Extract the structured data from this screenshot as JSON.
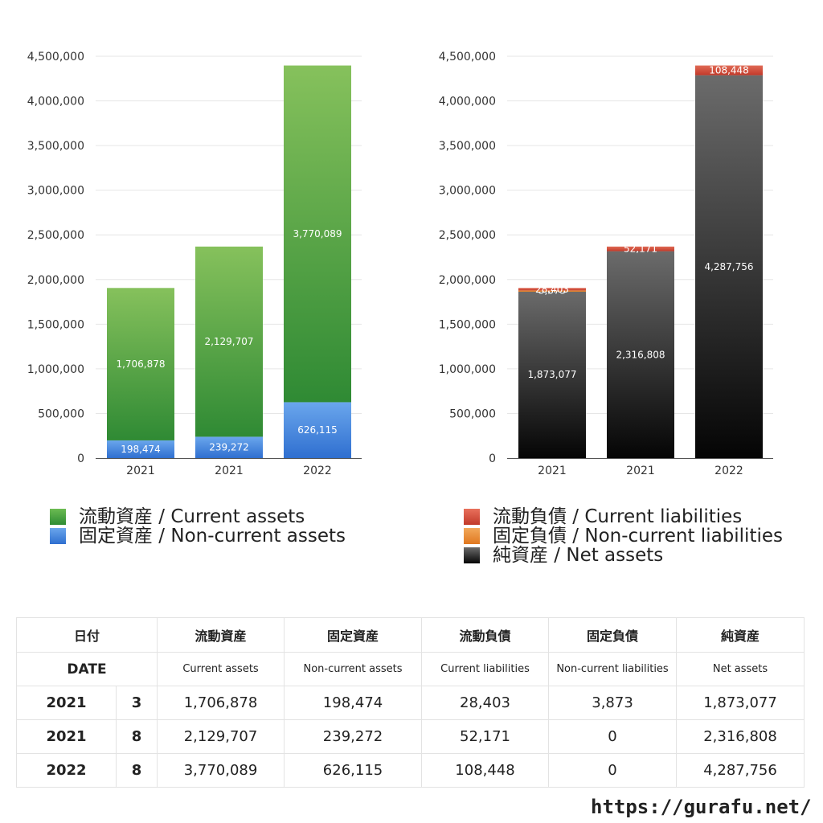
{
  "chart_data": [
    {
      "type": "bar",
      "stacked": true,
      "categories": [
        "2021",
        "2021",
        "2022"
      ],
      "ylim": [
        0,
        4500000
      ],
      "yticks": [
        "0",
        "500,000",
        "1,000,000",
        "1,500,000",
        "2,000,000",
        "2,500,000",
        "3,000,000",
        "3,500,000",
        "4,000,000",
        "4,500,000"
      ],
      "grid": true,
      "legend_position": "bottom",
      "series": [
        {
          "name": "固定資産 / Non-current assets",
          "values": [
            198474,
            239272,
            626115
          ],
          "labels": [
            "198,474",
            "239,272",
            "626,115"
          ],
          "color_top": "#6aa6ec",
          "color_bottom": "#2f6fd0"
        },
        {
          "name": "流動資産 / Current assets",
          "values": [
            1706878,
            2129707,
            3770089
          ],
          "labels": [
            "1,706,878",
            "2,129,707",
            "3,770,089"
          ],
          "color_top": "#86c15c",
          "color_bottom": "#2f8a34"
        }
      ]
    },
    {
      "type": "bar",
      "stacked": true,
      "categories": [
        "2021",
        "2021",
        "2022"
      ],
      "ylim": [
        0,
        4500000
      ],
      "yticks": [
        "0",
        "500,000",
        "1,000,000",
        "1,500,000",
        "2,000,000",
        "2,500,000",
        "3,000,000",
        "3,500,000",
        "4,000,000",
        "4,500,000"
      ],
      "grid": true,
      "legend_position": "bottom",
      "series": [
        {
          "name": "純資産 / Net assets",
          "values": [
            1873077,
            2316808,
            4287756
          ],
          "labels": [
            "1,873,077",
            "2,316,808",
            "4,287,756"
          ],
          "color_top": "#6b6b6b",
          "color_bottom": "#050505"
        },
        {
          "name": "固定負債 / Non-current liabilities",
          "values": [
            3873,
            0,
            0
          ],
          "labels": [
            "3,873",
            "",
            ""
          ],
          "color_top": "#f0a050",
          "color_bottom": "#e07820"
        },
        {
          "name": "流動負債 / Current liabilities",
          "values": [
            28403,
            52171,
            108448
          ],
          "labels": [
            "28,403",
            "52,171",
            "108,448"
          ],
          "color_top": "#e06a55",
          "color_bottom": "#c23a2a"
        }
      ]
    }
  ],
  "legend_left": [
    {
      "label": "流動資産 / Current assets",
      "color": "#4aa53c"
    },
    {
      "label": "固定資産 / Non-current assets",
      "color": "#3f86e0"
    }
  ],
  "legend_right": [
    {
      "label": "流動負債 / Current liabilities",
      "color": "#d44a3a"
    },
    {
      "label": "固定負債 / Non-current liabilities",
      "color": "#e8883a"
    },
    {
      "label": "純資産 / Net assets",
      "color": "#1a1a1a"
    }
  ],
  "table": {
    "headers_ja": [
      "日付",
      "流動資産",
      "固定資産",
      "流動負債",
      "固定負債",
      "純資産"
    ],
    "headers_en": [
      "DATE",
      "Current assets",
      "Non-current assets",
      "Current liabilities",
      "Non-current liabilities",
      "Net assets"
    ],
    "rows": [
      [
        "2021",
        "3",
        "1,706,878",
        "198,474",
        "28,403",
        "3,873",
        "1,873,077"
      ],
      [
        "2021",
        "8",
        "2,129,707",
        "239,272",
        "52,171",
        "0",
        "2,316,808"
      ],
      [
        "2022",
        "8",
        "3,770,089",
        "626,115",
        "108,448",
        "0",
        "4,287,756"
      ]
    ]
  },
  "site_url": "https://gurafu.net/"
}
